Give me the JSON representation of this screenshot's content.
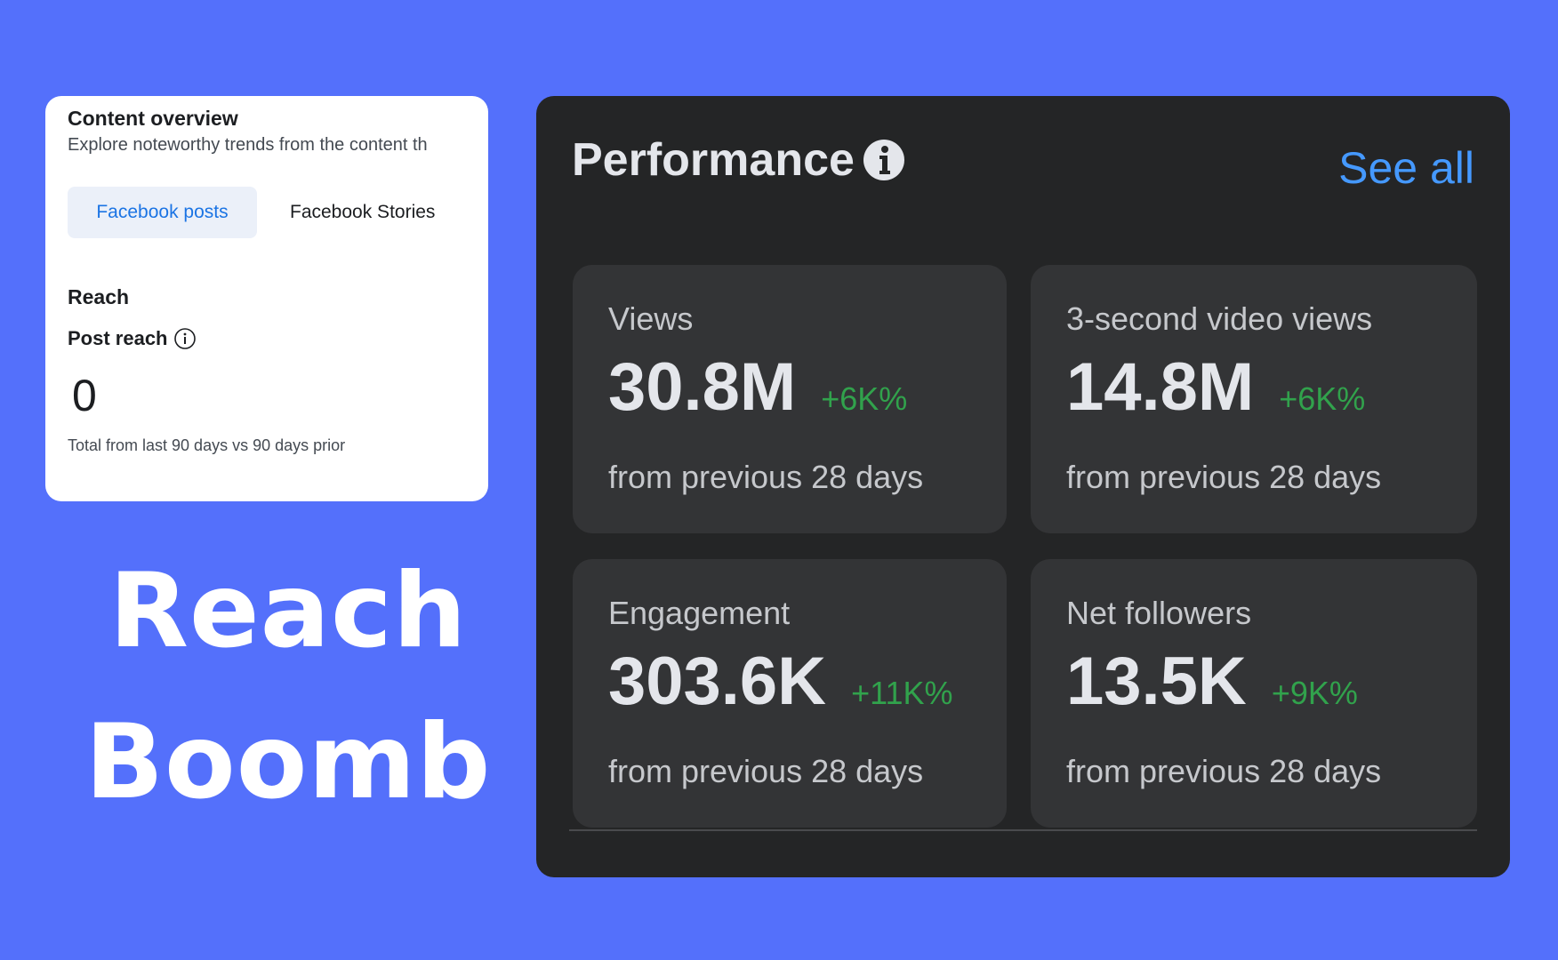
{
  "content_overview": {
    "title": "Content overview",
    "subtitle": "Explore noteworthy trends from the content th",
    "tabs": [
      {
        "label": "Facebook posts",
        "active": true
      },
      {
        "label": "Facebook Stories",
        "active": false
      }
    ],
    "section_heading": "Reach",
    "metric": {
      "label": "Post reach",
      "icon": "info-outline-icon",
      "value": "0",
      "caption": "Total from last 90 days vs 90 days prior"
    }
  },
  "headline": {
    "line1": "Reach",
    "line2": "Boomb"
  },
  "performance": {
    "title": "Performance",
    "title_icon": "info-filled-icon",
    "see_all_label": "See all",
    "stats": [
      {
        "label": "Views",
        "value": "30.8M",
        "change": "+6K%",
        "caption": "from previous 28 days"
      },
      {
        "label": "3-second video views",
        "value": "14.8M",
        "change": "+6K%",
        "caption": "from previous 28 days"
      },
      {
        "label": "Engagement",
        "value": "303.6K",
        "change": "+11K%",
        "caption": "from previous 28 days"
      },
      {
        "label": "Net followers",
        "value": "13.5K",
        "change": "+9K%",
        "caption": "from previous 28 days"
      }
    ]
  },
  "colors": {
    "background": "#5470fb",
    "panel_dark": "#242526",
    "card_dark": "#333436",
    "link_blue": "#4599ff",
    "positive_green": "#31a24c",
    "tab_active_text": "#1b74e4",
    "tab_active_bg": "#ebf0f9"
  }
}
